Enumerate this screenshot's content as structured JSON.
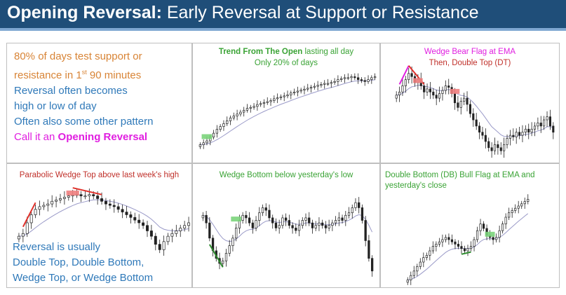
{
  "header": {
    "title_bold": "Opening Reversal:",
    "title_rest": " Early Reversal at Support or Resistance",
    "bg": "#1f4e79"
  },
  "panel1": {
    "line1": "80% of days test support or",
    "line2_pre": "resistance in 1",
    "line2_sup": "st",
    "line2_post": " 90 minutes",
    "line3": "Reversal often becomes",
    "line4": "high or low of day",
    "line5": "Often also some other pattern",
    "line6_pre": "Call it an ",
    "line6_bold": "Opening Reversal"
  },
  "panel2": {
    "caption1": "Trend From The Open",
    "caption1_rest": " lasting all day",
    "caption2": "Only 20% of days"
  },
  "panel3": {
    "caption1": "Wedge Bear Flag at EMA",
    "caption2": "Then, Double Top (DT)"
  },
  "panel4": {
    "caption": "Parabolic Wedge Top above last week's high",
    "text1": "Reversal is usually",
    "text2": "Double Top, Double Bottom,",
    "text3": "Wedge Top, or Wedge Bottom"
  },
  "panel5": {
    "caption": "Wedge Bottom below yesterday's low"
  },
  "panel6": {
    "caption1": "Double Bottom (DB) Bull Flag at EMA and",
    "caption2": "yesterday's close"
  },
  "colors": {
    "orange": "#d88436",
    "blue": "#2f79b9",
    "magenta": "#e01ee0",
    "green": "#3aa335",
    "red": "#c0302a",
    "ema": "#9a9ac8"
  },
  "chart_data": [
    {
      "type": "line",
      "name": "trend-from-open",
      "closes": [
        12,
        14,
        16,
        20,
        24,
        28,
        31,
        34,
        37,
        40,
        42,
        44,
        46,
        48,
        50,
        51,
        52,
        54,
        55,
        56,
        57,
        58,
        60,
        61,
        62,
        63,
        64,
        66,
        67,
        68,
        69,
        70,
        71,
        72,
        73,
        74,
        75,
        76,
        76,
        77,
        78,
        80,
        81,
        82,
        82,
        83,
        82,
        80,
        79,
        78,
        80,
        82,
        83
      ]
    },
    {
      "type": "line",
      "name": "wedge-bear-flag",
      "closes": [
        60,
        62,
        66,
        70,
        74,
        72,
        68,
        70,
        66,
        62,
        64,
        62,
        60,
        58,
        61,
        63,
        66,
        65,
        61,
        55,
        52,
        56,
        58,
        54,
        48,
        44,
        40,
        36,
        34,
        30,
        26,
        24,
        28,
        26,
        24,
        28,
        32,
        34,
        33,
        36,
        34,
        36,
        38,
        36,
        38,
        40,
        42,
        40,
        44,
        46,
        40,
        36
      ]
    },
    {
      "type": "line",
      "name": "parabolic-wedge-top",
      "closes": [
        40,
        42,
        50,
        56,
        60,
        62,
        63,
        64,
        66,
        67,
        68,
        69,
        70,
        71,
        71,
        70,
        70,
        71,
        70,
        68,
        66,
        64,
        63,
        62,
        60,
        58,
        56,
        54,
        52,
        50,
        48,
        44,
        40,
        34,
        30,
        36,
        40,
        42,
        44,
        46,
        48,
        50
      ]
    },
    {
      "type": "line",
      "name": "wedge-bottom",
      "closes": [
        60,
        54,
        42,
        32,
        26,
        22,
        24,
        30,
        36,
        42,
        50,
        56,
        60,
        58,
        54,
        50,
        56,
        62,
        66,
        64,
        58,
        54,
        50,
        52,
        58,
        56,
        52,
        50,
        48,
        52,
        56,
        58,
        54,
        50,
        52,
        54,
        52,
        50,
        52,
        54,
        56,
        58,
        56,
        60,
        62,
        66,
        70,
        66,
        56,
        40,
        26,
        16
      ]
    },
    {
      "type": "line",
      "name": "double-bottom-bull-flag",
      "closes": [
        10,
        14,
        18,
        22,
        26,
        30,
        32,
        36,
        40,
        42,
        44,
        46,
        48,
        46,
        44,
        42,
        40,
        38,
        36,
        38,
        40,
        46,
        54,
        60,
        56,
        50,
        48,
        46,
        48,
        54,
        60,
        66,
        70,
        72,
        74,
        76,
        78,
        80,
        82
      ]
    }
  ]
}
